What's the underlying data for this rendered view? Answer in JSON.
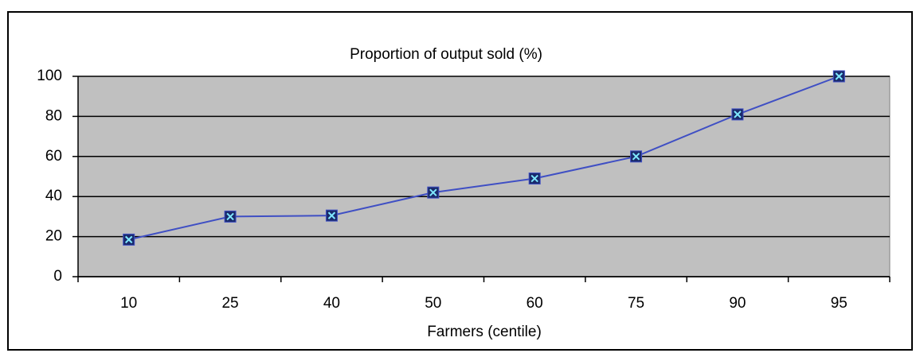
{
  "chart_data": {
    "type": "line",
    "title": "Proportion of output sold (%)",
    "x_label": "Farmers (centile)",
    "categories": [
      "10",
      "25",
      "40",
      "50",
      "60",
      "75",
      "90",
      "95"
    ],
    "values": [
      18.5,
      30,
      30.5,
      42,
      49,
      60,
      81,
      100
    ],
    "color": "#3f4fc4",
    "marker_color": "#1a2a6c",
    "ylim": [
      0,
      100
    ],
    "yticks": [
      0,
      20,
      40,
      60,
      80,
      100
    ],
    "grid": true
  }
}
